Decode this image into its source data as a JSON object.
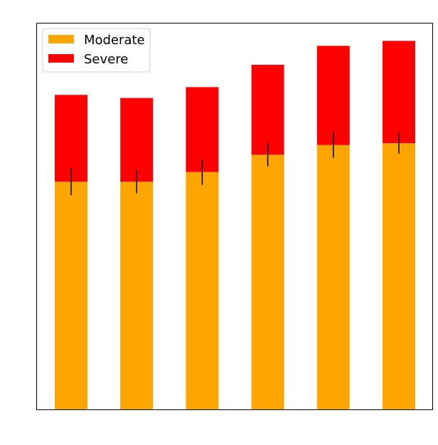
{
  "chart_data": {
    "type": "bar",
    "stacked": true,
    "title": "",
    "xlabel": "",
    "ylabel": "",
    "categories": [
      "",
      "",
      "",
      "",
      "",
      ""
    ],
    "ylim": [
      0,
      1.0
    ],
    "grid": false,
    "legend_position": "top-left",
    "series": [
      {
        "name": "Moderate",
        "color": "#FFA500",
        "values": [
          0.59,
          0.59,
          0.615,
          0.66,
          0.685,
          0.69
        ],
        "error": [
          0.035,
          0.03,
          0.033,
          0.03,
          0.033,
          0.027
        ]
      },
      {
        "name": "Severe",
        "color": "#FF0000",
        "values": [
          0.225,
          0.217,
          0.22,
          0.233,
          0.257,
          0.265
        ],
        "error": [
          0.0,
          0.0,
          0.0,
          0.0,
          0.0,
          0.0
        ]
      }
    ]
  }
}
